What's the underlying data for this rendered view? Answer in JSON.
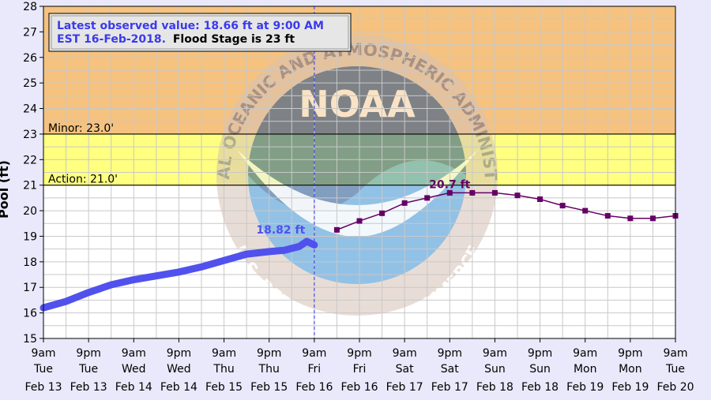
{
  "info_box": {
    "line1": "Latest observed value: 18.66 ft at 9:00 AM",
    "line2_date": "EST 16-Feb-2018.",
    "line2_flood": "Flood Stage is 23 ft"
  },
  "watermark": {
    "center_text": "NOAA",
    "ring_text": "NATIONAL OCEANIC AND ATMOSPHERIC ADMINISTRATION",
    "bottom_text": "U.S. DEPARTMENT OF COMMERCE"
  },
  "colors": {
    "major_band": "#f5c27f",
    "minor_band": "#ffff80",
    "observed": "#5151ee",
    "forecast": "#660066",
    "grid": "#c8c8c8",
    "page_bg": "#e9e9fb"
  },
  "chart_data": {
    "type": "line",
    "ylabel": "Pool (ft)",
    "ylim": [
      15,
      28
    ],
    "y_ticks": [
      "15",
      "16",
      "17",
      "18",
      "19",
      "20",
      "21",
      "22",
      "23",
      "24",
      "25",
      "26",
      "27",
      "28"
    ],
    "x_hours_from_first_tick": [
      0,
      168
    ],
    "x_ticks": [
      {
        "time": "9am",
        "day": "Tue",
        "date": "Feb 13"
      },
      {
        "time": "9pm",
        "day": "Tue",
        "date": "Feb 13"
      },
      {
        "time": "9am",
        "day": "Wed",
        "date": "Feb 14"
      },
      {
        "time": "9pm",
        "day": "Wed",
        "date": "Feb 14"
      },
      {
        "time": "9am",
        "day": "Thu",
        "date": "Feb 15"
      },
      {
        "time": "9pm",
        "day": "Thu",
        "date": "Feb 15"
      },
      {
        "time": "9am",
        "day": "Fri",
        "date": "Feb 16"
      },
      {
        "time": "9pm",
        "day": "Fri",
        "date": "Feb 16"
      },
      {
        "time": "9am",
        "day": "Sat",
        "date": "Feb 17"
      },
      {
        "time": "9pm",
        "day": "Sat",
        "date": "Feb 17"
      },
      {
        "time": "9am",
        "day": "Sun",
        "date": "Feb 18"
      },
      {
        "time": "9pm",
        "day": "Sun",
        "date": "Feb 18"
      },
      {
        "time": "9am",
        "day": "Mon",
        "date": "Feb 19"
      },
      {
        "time": "9pm",
        "day": "Mon",
        "date": "Feb 19"
      },
      {
        "time": "9am",
        "day": "Tue",
        "date": "Feb 20"
      }
    ],
    "stages": [
      {
        "name": "Minor",
        "label": "Minor: 23.0'",
        "value": 23.0
      },
      {
        "name": "Action",
        "label": "Action: 21.0'",
        "value": 21.0
      }
    ],
    "current_time_hours": 72,
    "series": [
      {
        "name": "Observed",
        "points": [
          [
            0,
            16.2
          ],
          [
            6,
            16.45
          ],
          [
            12,
            16.8
          ],
          [
            18,
            17.1
          ],
          [
            24,
            17.3
          ],
          [
            30,
            17.45
          ],
          [
            36,
            17.6
          ],
          [
            42,
            17.8
          ],
          [
            48,
            18.05
          ],
          [
            54,
            18.3
          ],
          [
            60,
            18.4
          ],
          [
            64,
            18.45
          ],
          [
            68,
            18.6
          ],
          [
            70,
            18.8
          ],
          [
            72,
            18.66
          ]
        ],
        "label": "18.82 ft",
        "label_at": [
          70,
          18.8
        ]
      },
      {
        "name": "Forecast",
        "points": [
          [
            78,
            19.25
          ],
          [
            84,
            19.6
          ],
          [
            90,
            19.9
          ],
          [
            96,
            20.3
          ],
          [
            102,
            20.5
          ],
          [
            108,
            20.7
          ],
          [
            114,
            20.7
          ],
          [
            120,
            20.7
          ],
          [
            126,
            20.6
          ],
          [
            132,
            20.45
          ],
          [
            138,
            20.2
          ],
          [
            144,
            20.0
          ],
          [
            150,
            19.8
          ],
          [
            156,
            19.7
          ],
          [
            162,
            19.7
          ],
          [
            168,
            19.8
          ]
        ],
        "label": "20.7 ft",
        "label_at": [
          108,
          20.7
        ]
      }
    ]
  }
}
